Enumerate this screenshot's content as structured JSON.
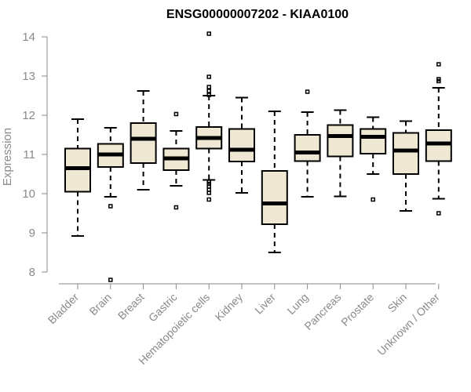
{
  "chart_data": {
    "type": "box",
    "title": "ENSG00000007202 - KIAA0100",
    "xlabel": "",
    "ylabel": "Expression",
    "ylim": [
      7.8,
      14.1
    ],
    "yticks": [
      8,
      9,
      10,
      11,
      12,
      13,
      14
    ],
    "box_fill": "#efe8d2",
    "categories": [
      "Bladder",
      "Brain",
      "Breast",
      "Gastric",
      "Hematopoietic cells",
      "Kidney",
      "Liver",
      "Lung",
      "Pancreas",
      "Prostate",
      "Skin",
      "Unknown / Other"
    ],
    "boxes": [
      {
        "low": 8.92,
        "q1": 10.05,
        "median": 10.65,
        "q3": 11.15,
        "high": 11.9,
        "outliers": []
      },
      {
        "low": 9.92,
        "q1": 10.68,
        "median": 11.0,
        "q3": 11.27,
        "high": 11.68,
        "outliers": [
          9.68,
          7.8
        ]
      },
      {
        "low": 10.1,
        "q1": 10.78,
        "median": 11.4,
        "q3": 11.8,
        "high": 12.62,
        "outliers": []
      },
      {
        "low": 10.2,
        "q1": 10.6,
        "median": 10.9,
        "q3": 11.15,
        "high": 11.6,
        "outliers": [
          12.03,
          9.65
        ]
      },
      {
        "low": 10.35,
        "q1": 11.15,
        "median": 11.42,
        "q3": 11.7,
        "high": 12.5,
        "outliers": [
          14.08,
          12.98,
          12.72,
          12.62,
          12.52,
          10.3,
          10.25,
          10.18,
          10.1,
          10.02,
          9.85
        ]
      },
      {
        "low": 10.02,
        "q1": 10.82,
        "median": 11.12,
        "q3": 11.65,
        "high": 12.45,
        "outliers": []
      },
      {
        "low": 8.5,
        "q1": 9.22,
        "median": 9.75,
        "q3": 10.58,
        "high": 12.1,
        "outliers": []
      },
      {
        "low": 9.92,
        "q1": 10.83,
        "median": 11.05,
        "q3": 11.5,
        "high": 12.08,
        "outliers": [
          12.6
        ]
      },
      {
        "low": 9.93,
        "q1": 10.95,
        "median": 11.47,
        "q3": 11.75,
        "high": 12.13,
        "outliers": []
      },
      {
        "low": 10.5,
        "q1": 11.02,
        "median": 11.45,
        "q3": 11.65,
        "high": 11.95,
        "outliers": [
          9.85
        ]
      },
      {
        "low": 9.56,
        "q1": 10.5,
        "median": 11.1,
        "q3": 11.55,
        "high": 11.85,
        "outliers": []
      },
      {
        "low": 9.87,
        "q1": 10.83,
        "median": 11.28,
        "q3": 11.62,
        "high": 12.7,
        "outliers": [
          13.3,
          12.92,
          12.87,
          9.5
        ]
      }
    ]
  }
}
